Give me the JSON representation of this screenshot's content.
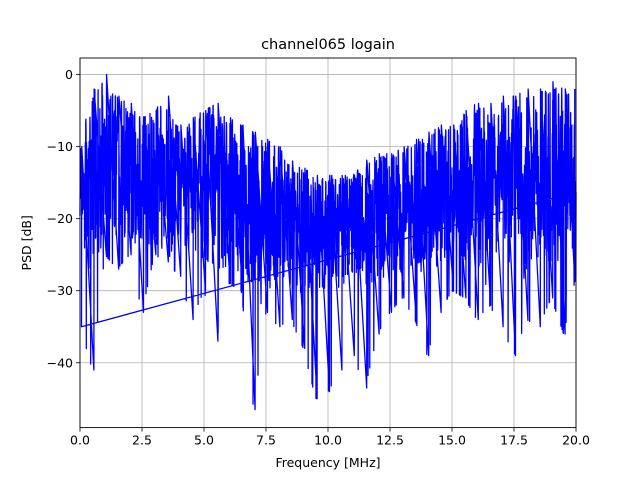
{
  "chart_data": {
    "type": "line",
    "title": "channel065 logain",
    "xlabel": "Frequency [MHz]",
    "ylabel": "PSD [dB]",
    "xlim": [
      0,
      20
    ],
    "ylim": [
      -49,
      2.3
    ],
    "x_ticks": [
      0,
      2.5,
      5,
      7.5,
      10,
      12.5,
      15,
      17.5,
      20
    ],
    "x_tick_labels": [
      "0.0",
      "2.5",
      "5.0",
      "7.5",
      "10.0",
      "12.5",
      "15.0",
      "17.5",
      "20.0"
    ],
    "y_ticks": [
      0,
      -10,
      -20,
      -30,
      -40
    ],
    "y_tick_labels": [
      "0",
      "−10",
      "−20",
      "−30",
      "−40"
    ],
    "grid": true,
    "legend": "none",
    "series": [
      {
        "color": "#0000ff",
        "envelope_points": {
          "x": [
            0,
            0.5,
            1,
            1.5,
            2,
            2.5,
            3,
            3.5,
            4,
            4.5,
            5,
            5.5,
            6,
            6.5,
            7,
            7.5,
            8,
            8.5,
            9,
            9.5,
            10,
            10.5,
            11,
            11.5,
            12,
            12.5,
            13,
            13.5,
            14,
            14.5,
            15,
            15.5,
            16,
            16.5,
            17,
            17.5,
            18,
            18.5,
            19,
            19.5,
            20
          ],
          "upper": [
            -10,
            -2,
            0,
            -3,
            -4,
            -6,
            -5,
            -3,
            -7,
            -6,
            -5,
            -4,
            -6,
            -7,
            -8,
            -9,
            -10,
            -12,
            -13,
            -14,
            -14,
            -14,
            -14,
            -12,
            -11,
            -11,
            -10,
            -9,
            -8,
            -7,
            -7,
            -5,
            -4,
            -4,
            -3,
            -3,
            -2,
            -2,
            -1,
            -2,
            -2
          ],
          "lower": [
            -35,
            -41,
            -25,
            -27,
            -25,
            -33,
            -25,
            -26,
            -28,
            -34,
            -30,
            -37,
            -29,
            -30,
            -46.5,
            -33,
            -35,
            -34,
            -38,
            -45,
            -44,
            -41,
            -39,
            -43.5,
            -36,
            -33,
            -31,
            -34,
            -39,
            -33,
            -30,
            -31,
            -34,
            -32,
            -35,
            -39,
            -34,
            -35,
            -31,
            -36,
            -28
          ],
          "center": [
            -17,
            -14,
            -13,
            -14,
            -14,
            -15,
            -15,
            -15,
            -15,
            -16,
            -16,
            -16,
            -17,
            -18,
            -19,
            -20,
            -20,
            -21,
            -22,
            -22,
            -22,
            -22,
            -21,
            -21,
            -20,
            -20,
            -19,
            -18,
            -17,
            -17,
            -16,
            -16,
            -16,
            -15,
            -15,
            -15,
            -15,
            -14,
            -14,
            -14,
            -14
          ]
        }
      }
    ]
  }
}
